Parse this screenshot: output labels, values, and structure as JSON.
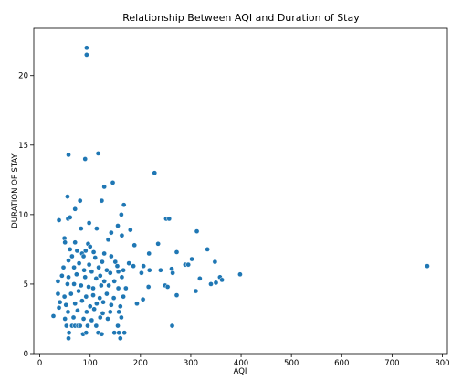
{
  "chart_data": {
    "type": "scatter",
    "title": "Relationship Between AQI and Duration of Stay",
    "xlabel": "AQI",
    "ylabel": "DURATION OF STAY",
    "xlim": [
      -12,
      810
    ],
    "ylim": [
      0,
      23.4
    ],
    "xticks": [
      0,
      100,
      200,
      300,
      400,
      500,
      600,
      700,
      800
    ],
    "yticks": [
      0,
      5,
      10,
      15,
      20
    ],
    "grid": false,
    "legend": "none",
    "point_color": "#1f77b4",
    "points": [
      [
        93,
        22.0
      ],
      [
        93,
        21.5
      ],
      [
        57,
        14.3
      ],
      [
        116,
        14.4
      ],
      [
        90,
        14.0
      ],
      [
        228,
        13.0
      ],
      [
        55,
        11.3
      ],
      [
        80,
        11.0
      ],
      [
        128,
        12.0
      ],
      [
        145,
        12.3
      ],
      [
        123,
        11.0
      ],
      [
        167,
        10.7
      ],
      [
        162,
        10.0
      ],
      [
        70,
        10.4
      ],
      [
        56,
        9.7
      ],
      [
        60,
        9.8
      ],
      [
        38,
        9.6
      ],
      [
        98,
        9.4
      ],
      [
        251,
        9.7
      ],
      [
        257,
        9.7
      ],
      [
        82,
        9.0
      ],
      [
        113,
        9.0
      ],
      [
        155,
        9.2
      ],
      [
        180,
        8.9
      ],
      [
        142,
        8.7
      ],
      [
        312,
        8.8
      ],
      [
        49,
        8.3
      ],
      [
        50,
        8.0
      ],
      [
        70,
        8.0
      ],
      [
        96,
        7.9
      ],
      [
        100,
        7.7
      ],
      [
        136,
        8.2
      ],
      [
        163,
        8.5
      ],
      [
        188,
        7.8
      ],
      [
        235,
        7.9
      ],
      [
        60,
        7.5
      ],
      [
        74,
        7.4
      ],
      [
        84,
        7.2
      ],
      [
        91,
        7.4
      ],
      [
        107,
        7.3
      ],
      [
        128,
        7.2
      ],
      [
        142,
        7.0
      ],
      [
        217,
        7.2
      ],
      [
        333,
        7.5
      ],
      [
        272,
        7.3
      ],
      [
        64,
        7.0
      ],
      [
        87,
        7.0
      ],
      [
        110,
        6.9
      ],
      [
        124,
        6.6
      ],
      [
        150,
        6.6
      ],
      [
        177,
        6.5
      ],
      [
        206,
        6.3
      ],
      [
        302,
        6.8
      ],
      [
        262,
        6.1
      ],
      [
        289,
        6.4
      ],
      [
        348,
        6.6
      ],
      [
        770,
        6.3
      ],
      [
        57,
        6.7
      ],
      [
        78,
        6.5
      ],
      [
        98,
        6.4
      ],
      [
        117,
        6.2
      ],
      [
        133,
        6.0
      ],
      [
        154,
        6.3
      ],
      [
        166,
        6.0
      ],
      [
        186,
        6.3
      ],
      [
        240,
        6.0
      ],
      [
        295,
        6.4
      ],
      [
        47,
        6.2
      ],
      [
        68,
        6.2
      ],
      [
        88,
        6.0
      ],
      [
        103,
        5.9
      ],
      [
        120,
        5.6
      ],
      [
        140,
        5.8
      ],
      [
        156,
        5.9
      ],
      [
        202,
        5.8
      ],
      [
        218,
        6.0
      ],
      [
        264,
        5.8
      ],
      [
        398,
        5.7
      ],
      [
        44,
        5.6
      ],
      [
        57,
        5.5
      ],
      [
        73,
        5.7
      ],
      [
        90,
        5.5
      ],
      [
        112,
        5.4
      ],
      [
        128,
        5.2
      ],
      [
        148,
        5.2
      ],
      [
        163,
        5.5
      ],
      [
        318,
        5.4
      ],
      [
        358,
        5.5
      ],
      [
        362,
        5.3
      ],
      [
        350,
        5.1
      ],
      [
        36,
        5.2
      ],
      [
        55,
        5.0
      ],
      [
        68,
        5.0
      ],
      [
        82,
        4.9
      ],
      [
        97,
        4.8
      ],
      [
        106,
        4.7
      ],
      [
        122,
        4.9
      ],
      [
        137,
        4.9
      ],
      [
        156,
        4.7
      ],
      [
        171,
        4.7
      ],
      [
        216,
        4.8
      ],
      [
        249,
        4.9
      ],
      [
        254,
        4.8
      ],
      [
        340,
        5.0
      ],
      [
        310,
        4.5
      ],
      [
        36,
        4.3
      ],
      [
        49,
        4.1
      ],
      [
        62,
        4.3
      ],
      [
        77,
        4.5
      ],
      [
        92,
        4.1
      ],
      [
        106,
        4.2
      ],
      [
        119,
        4.0
      ],
      [
        133,
        4.3
      ],
      [
        147,
        4.0
      ],
      [
        166,
        4.1
      ],
      [
        205,
        3.9
      ],
      [
        272,
        4.2
      ],
      [
        40,
        3.7
      ],
      [
        52,
        3.5
      ],
      [
        70,
        3.6
      ],
      [
        84,
        3.8
      ],
      [
        100,
        3.4
      ],
      [
        113,
        3.6
      ],
      [
        126,
        3.7
      ],
      [
        142,
        3.5
      ],
      [
        160,
        3.4
      ],
      [
        193,
        3.6
      ],
      [
        38,
        3.3
      ],
      [
        56,
        3.0
      ],
      [
        75,
        3.1
      ],
      [
        93,
        3.0
      ],
      [
        108,
        3.2
      ],
      [
        125,
        2.9
      ],
      [
        140,
        3.0
      ],
      [
        157,
        3.0
      ],
      [
        27,
        2.7
      ],
      [
        50,
        2.5
      ],
      [
        67,
        2.6
      ],
      [
        87,
        2.5
      ],
      [
        103,
        2.4
      ],
      [
        120,
        2.6
      ],
      [
        135,
        2.5
      ],
      [
        162,
        2.6
      ],
      [
        53,
        2.0
      ],
      [
        64,
        2.0
      ],
      [
        70,
        2.0
      ],
      [
        76,
        2.0
      ],
      [
        80,
        2.0
      ],
      [
        95,
        2.0
      ],
      [
        112,
        2.0
      ],
      [
        155,
        2.0
      ],
      [
        263,
        2.0
      ],
      [
        58,
        1.5
      ],
      [
        86,
        1.4
      ],
      [
        92,
        1.5
      ],
      [
        116,
        1.5
      ],
      [
        123,
        1.4
      ],
      [
        148,
        1.5
      ],
      [
        157,
        1.5
      ],
      [
        168,
        1.5
      ],
      [
        57,
        1.1
      ],
      [
        160,
        1.1
      ]
    ]
  }
}
